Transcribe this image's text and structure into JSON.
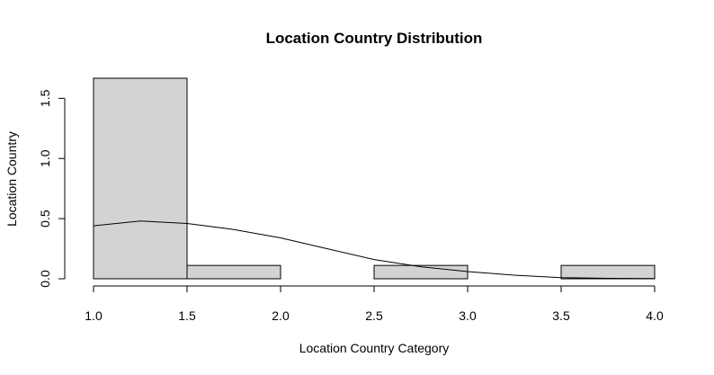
{
  "chart_data": {
    "type": "bar",
    "title": "Location Country Distribution",
    "xlabel": "Location Country Category",
    "ylabel": "Location Country",
    "xlim": [
      1.0,
      4.0
    ],
    "ylim": [
      0,
      1.75
    ],
    "x_ticks": [
      "1.0",
      "1.5",
      "2.0",
      "2.5",
      "3.0",
      "3.5",
      "4.0"
    ],
    "y_ticks": [
      "0.0",
      "0.5",
      "1.0",
      "1.5"
    ],
    "bins": [
      {
        "from": 1.0,
        "to": 1.5,
        "density": 1.667
      },
      {
        "from": 1.5,
        "to": 2.0,
        "density": 0.111
      },
      {
        "from": 2.0,
        "to": 2.5,
        "density": 0.0
      },
      {
        "from": 2.5,
        "to": 3.0,
        "density": 0.111
      },
      {
        "from": 3.0,
        "to": 3.5,
        "density": 0.0
      },
      {
        "from": 3.5,
        "to": 4.0,
        "density": 0.111
      }
    ],
    "density_curve": {
      "x": [
        1.0,
        1.25,
        1.5,
        1.75,
        2.0,
        2.25,
        2.5,
        2.75,
        3.0,
        3.25,
        3.5,
        3.75,
        4.0
      ],
      "y": [
        0.44,
        0.48,
        0.46,
        0.41,
        0.34,
        0.25,
        0.16,
        0.1,
        0.06,
        0.03,
        0.01,
        0.004,
        0.002
      ]
    },
    "bar_fill": "#d3d3d3",
    "grid": false,
    "legend": "none"
  }
}
